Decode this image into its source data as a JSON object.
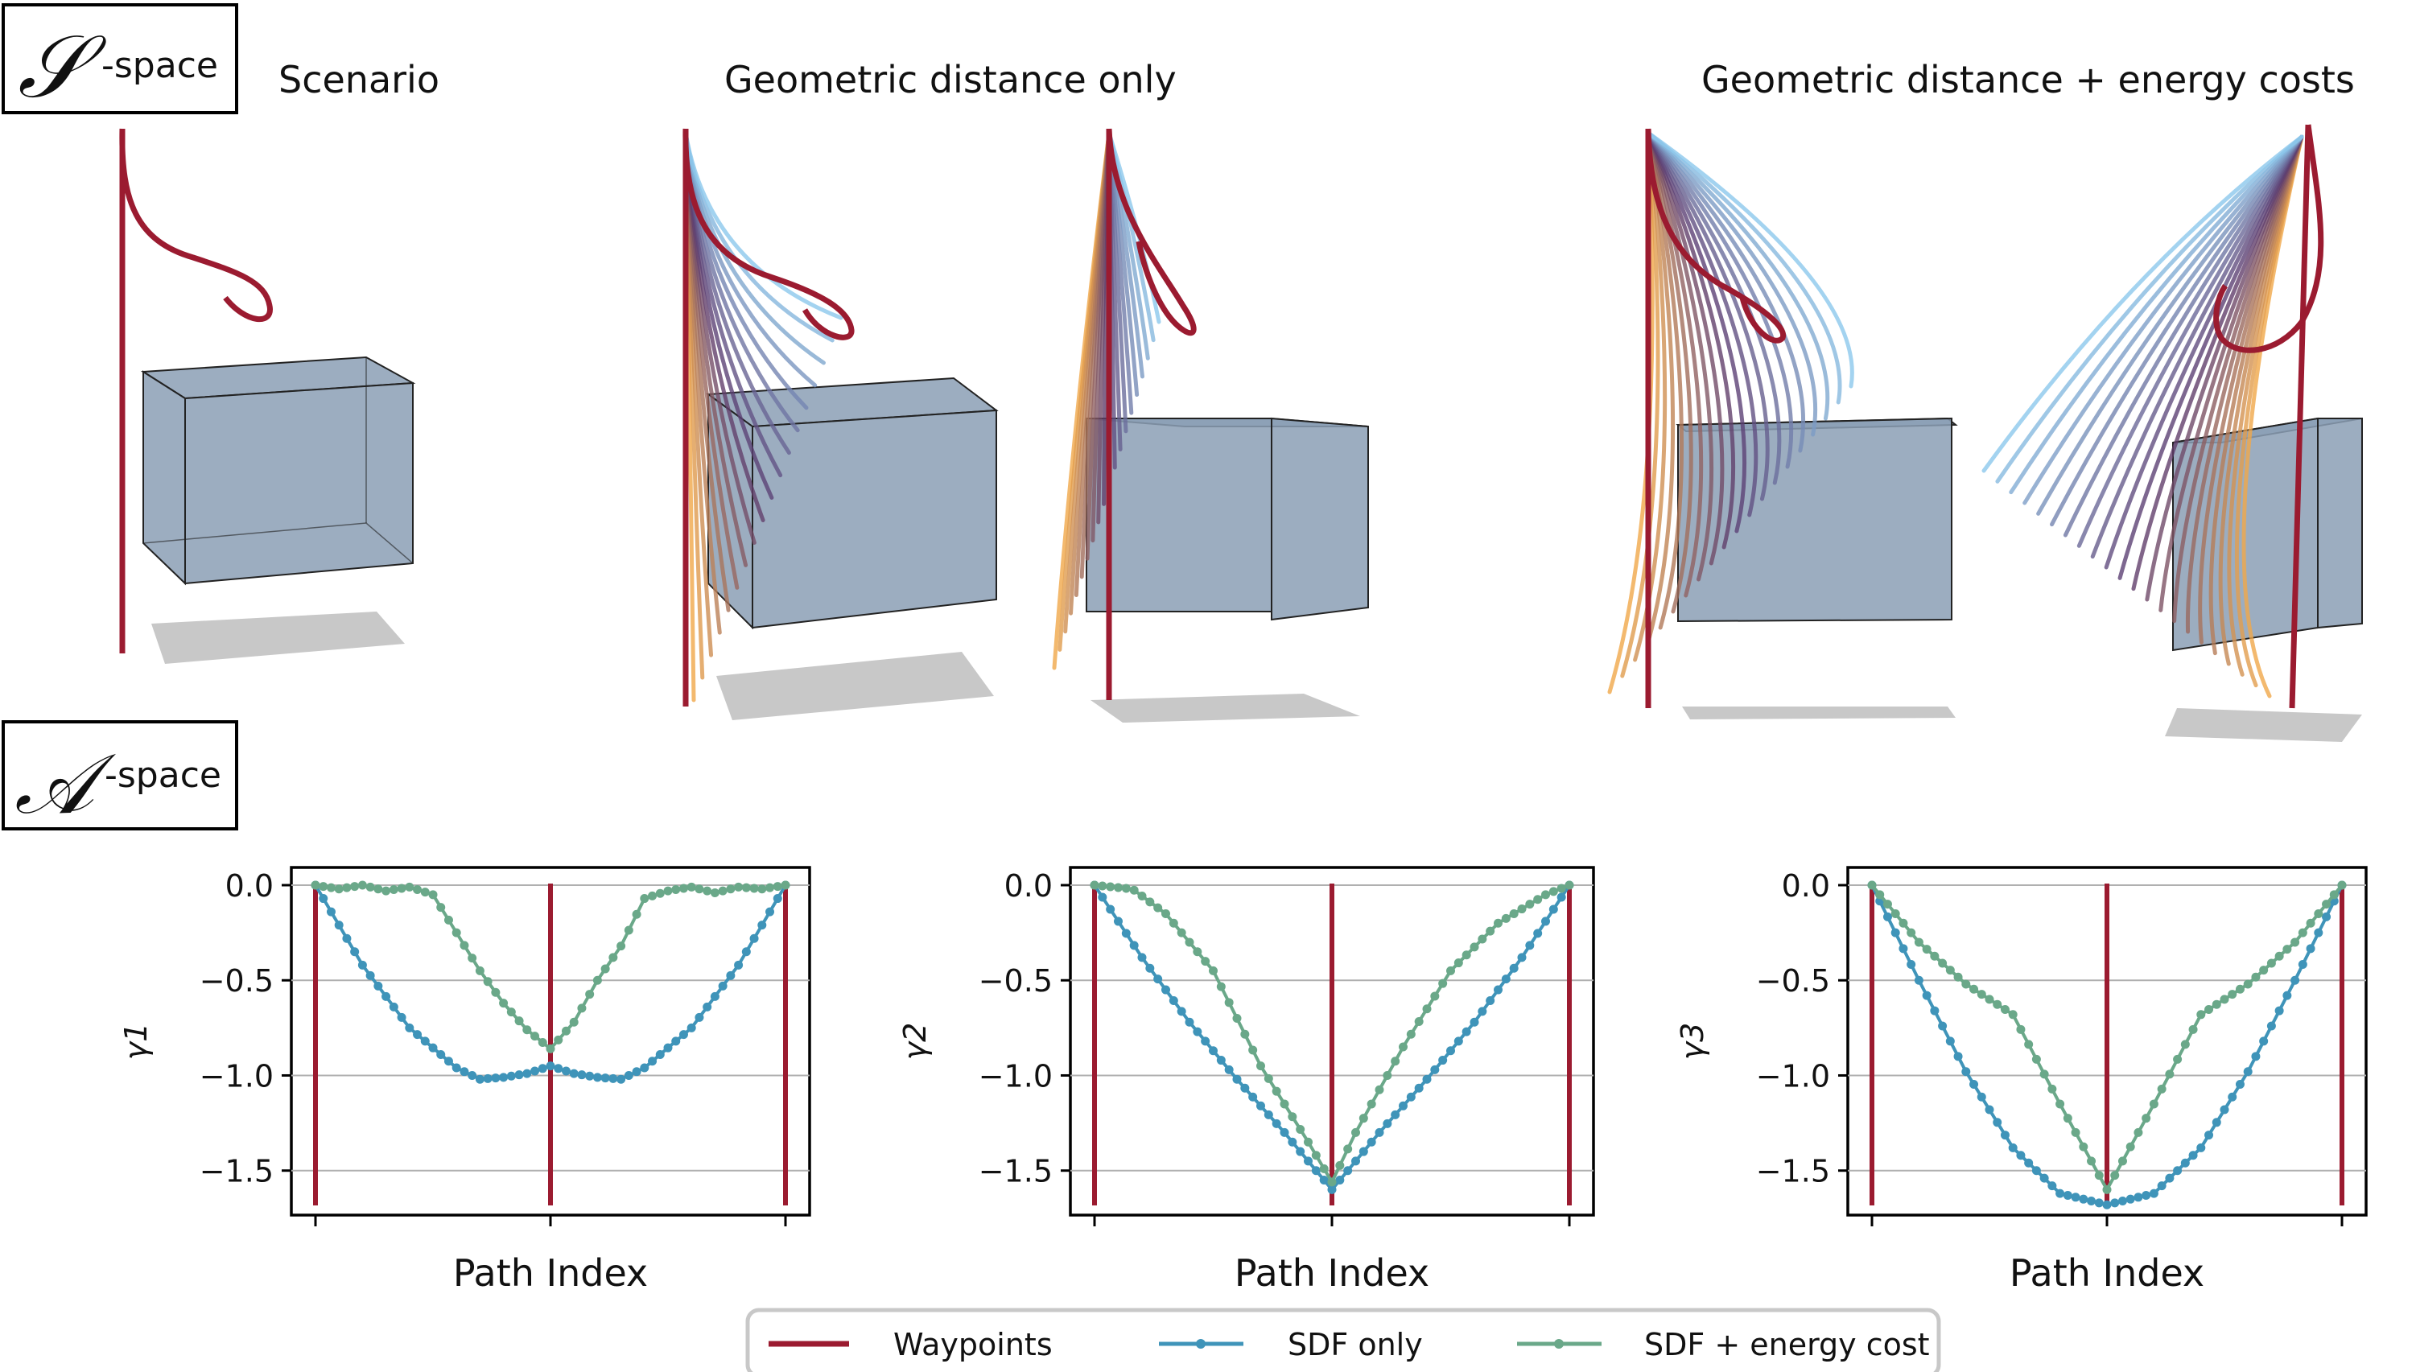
{
  "colors": {
    "waypoints": "#9b1b30",
    "sdf_only": "#3f94b9",
    "sdf_energy": "#6aa889",
    "box_fill": "#8b9fb5",
    "shadow": "#c8c8c8",
    "grid": "#b0b0b0"
  },
  "labels": {
    "s_glyph": "𝒮",
    "s_space": "-space",
    "a_glyph": "𝒜",
    "a_space": "-space",
    "scenario": "Scenario",
    "geo_only": "Geometric distance only",
    "geo_energy": "Geometric distance + energy costs"
  },
  "legend": {
    "items": [
      {
        "label": "Waypoints",
        "kind": "line"
      },
      {
        "label": "SDF only",
        "kind": "marker"
      },
      {
        "label": "SDF + energy cost",
        "kind": "marker"
      }
    ]
  },
  "chart_data": [
    {
      "type": "line",
      "ylabel": "γ1",
      "xlabel": "Path Index",
      "ylim": [
        -1.7,
        0.0
      ],
      "yticks": [
        0.0,
        -0.5,
        -1.0,
        -1.5
      ],
      "ytick_labels": [
        "0.0",
        "−0.5",
        "−1.0",
        "−1.5"
      ],
      "waypoints": [
        0,
        0.5,
        1
      ],
      "grid": "horizontal",
      "series": [
        {
          "name": "SDF only",
          "anchors": [
            [
              0,
              0
            ],
            [
              0.1,
              -0.42
            ],
            [
              0.2,
              -0.75
            ],
            [
              0.3,
              -0.96
            ],
            [
              0.35,
              -1.02
            ],
            [
              0.4,
              -1.01
            ],
            [
              0.45,
              -0.99
            ],
            [
              0.5,
              -0.95
            ],
            [
              0.55,
              -0.99
            ],
            [
              0.6,
              -1.01
            ],
            [
              0.65,
              -1.02
            ],
            [
              0.7,
              -0.96
            ],
            [
              0.8,
              -0.75
            ],
            [
              0.9,
              -0.42
            ],
            [
              1,
              0
            ]
          ]
        },
        {
          "name": "SDF + energy cost",
          "anchors": [
            [
              0,
              0
            ],
            [
              0.05,
              -0.02
            ],
            [
              0.1,
              0.0
            ],
            [
              0.15,
              -0.03
            ],
            [
              0.2,
              -0.01
            ],
            [
              0.25,
              -0.05
            ],
            [
              0.3,
              -0.25
            ],
            [
              0.35,
              -0.45
            ],
            [
              0.4,
              -0.62
            ],
            [
              0.45,
              -0.76
            ],
            [
              0.5,
              -0.86
            ],
            [
              0.55,
              -0.72
            ],
            [
              0.6,
              -0.5
            ],
            [
              0.65,
              -0.32
            ],
            [
              0.7,
              -0.07
            ],
            [
              0.75,
              -0.03
            ],
            [
              0.8,
              -0.01
            ],
            [
              0.85,
              -0.04
            ],
            [
              0.9,
              -0.01
            ],
            [
              0.95,
              -0.02
            ],
            [
              1,
              0
            ]
          ]
        }
      ]
    },
    {
      "type": "line",
      "ylabel": "γ2",
      "xlabel": "Path Index",
      "ylim": [
        -1.7,
        0.0
      ],
      "yticks": [
        0.0,
        -0.5,
        -1.0,
        -1.5
      ],
      "ytick_labels": [
        "0.0",
        "−0.5",
        "−1.0",
        "−1.5"
      ],
      "waypoints": [
        0,
        0.5,
        1
      ],
      "grid": "horizontal",
      "series": [
        {
          "name": "SDF only",
          "anchors": [
            [
              0,
              0
            ],
            [
              0.1,
              -0.38
            ],
            [
              0.2,
              -0.72
            ],
            [
              0.3,
              -1.02
            ],
            [
              0.4,
              -1.3
            ],
            [
              0.5,
              -1.6
            ],
            [
              0.6,
              -1.3
            ],
            [
              0.7,
              -1.02
            ],
            [
              0.8,
              -0.72
            ],
            [
              0.9,
              -0.38
            ],
            [
              1,
              0
            ]
          ]
        },
        {
          "name": "SDF + energy cost",
          "anchors": [
            [
              0,
              0
            ],
            [
              0.08,
              -0.02
            ],
            [
              0.15,
              -0.15
            ],
            [
              0.25,
              -0.45
            ],
            [
              0.35,
              -0.95
            ],
            [
              0.45,
              -1.35
            ],
            [
              0.5,
              -1.56
            ],
            [
              0.55,
              -1.3
            ],
            [
              0.65,
              -0.85
            ],
            [
              0.75,
              -0.45
            ],
            [
              0.85,
              -0.2
            ],
            [
              0.95,
              -0.05
            ],
            [
              1,
              0
            ]
          ]
        }
      ]
    },
    {
      "type": "line",
      "ylabel": "γ3",
      "xlabel": "Path Index",
      "ylim": [
        -1.7,
        0.0
      ],
      "yticks": [
        0.0,
        -0.5,
        -1.0,
        -1.5
      ],
      "ytick_labels": [
        "0.0",
        "−0.5",
        "−1.0",
        "−1.5"
      ],
      "waypoints": [
        0,
        0.5,
        1
      ],
      "grid": "horizontal",
      "series": [
        {
          "name": "SDF only",
          "anchors": [
            [
              0,
              0
            ],
            [
              0.1,
              -0.5
            ],
            [
              0.2,
              -0.98
            ],
            [
              0.3,
              -1.38
            ],
            [
              0.4,
              -1.62
            ],
            [
              0.5,
              -1.68
            ],
            [
              0.6,
              -1.62
            ],
            [
              0.7,
              -1.38
            ],
            [
              0.8,
              -0.98
            ],
            [
              0.9,
              -0.5
            ],
            [
              1,
              0
            ]
          ]
        },
        {
          "name": "SDF + energy cost",
          "anchors": [
            [
              0,
              0
            ],
            [
              0.1,
              -0.3
            ],
            [
              0.2,
              -0.52
            ],
            [
              0.3,
              -0.68
            ],
            [
              0.4,
              -1.15
            ],
            [
              0.5,
              -1.6
            ],
            [
              0.6,
              -1.15
            ],
            [
              0.7,
              -0.68
            ],
            [
              0.8,
              -0.52
            ],
            [
              0.9,
              -0.3
            ],
            [
              1,
              0
            ]
          ]
        }
      ]
    }
  ]
}
